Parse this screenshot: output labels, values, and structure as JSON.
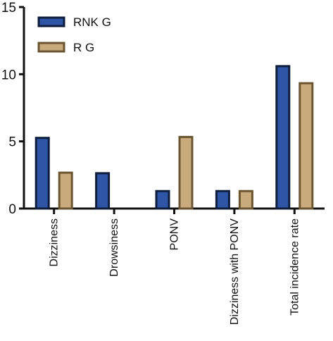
{
  "chart_data": {
    "type": "bar",
    "title": "",
    "xlabel": "",
    "ylabel": "",
    "categories": [
      "Dizziness",
      "Drowsiness",
      "PONV",
      "Dizziness with PONV",
      "Total incidence rate"
    ],
    "series": [
      {
        "name": "RNK G",
        "values": [
          5.26,
          2.63,
          1.3,
          1.3,
          10.6
        ],
        "fill": "#2e55a6",
        "stroke": "#0f1d3c"
      },
      {
        "name": "R G",
        "values": [
          2.67,
          0,
          5.33,
          1.3,
          9.33
        ],
        "fill": "#c8aa7c",
        "stroke": "#6a5530"
      }
    ],
    "ylim": [
      0,
      15
    ],
    "yticks": [
      0,
      5,
      10,
      15
    ],
    "grid": false,
    "legend_position": "top-left"
  }
}
